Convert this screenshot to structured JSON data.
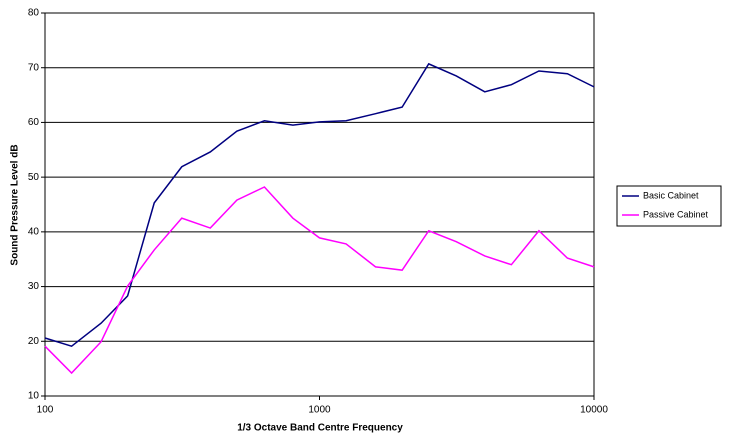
{
  "chart_data": {
    "type": "line",
    "x_label": "1/3 Octave Band Centre Frequency",
    "y_label": "Sound Pressure Level dB",
    "x": [
      100,
      125,
      160,
      200,
      250,
      315,
      400,
      500,
      630,
      800,
      1000,
      1250,
      1600,
      2000,
      2500,
      3150,
      4000,
      5000,
      6300,
      8000,
      10000
    ],
    "series": [
      {
        "name": "Basic Cabinet",
        "color": "#000080",
        "values": [
          20.6,
          19.1,
          23.3,
          28.3,
          45.3,
          51.9,
          54.6,
          58.4,
          60.3,
          59.5,
          60.1,
          60.3,
          61.6,
          62.8,
          70.7,
          68.5,
          65.6,
          66.9,
          69.4,
          68.9,
          66.5
        ]
      },
      {
        "name": "Passive Cabinet",
        "color": "#ff00ff",
        "values": [
          19.1,
          14.2,
          19.9,
          30.1,
          36.7,
          42.5,
          40.7,
          45.8,
          48.2,
          42.5,
          38.9,
          37.8,
          33.6,
          33.0,
          40.2,
          38.2,
          35.6,
          34.0,
          40.2,
          35.2,
          33.6
        ]
      }
    ],
    "xscale": "log",
    "xlim": [
      100,
      10000
    ],
    "xticks": [
      100,
      1000,
      10000
    ],
    "ylim": [
      10,
      80
    ],
    "yticks": [
      10,
      20,
      30,
      40,
      50,
      60,
      70,
      80
    ],
    "grid": true,
    "legend": "right"
  }
}
